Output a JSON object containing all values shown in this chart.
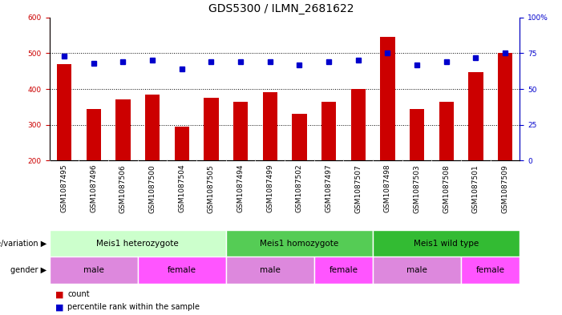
{
  "title": "GDS5300 / ILMN_2681622",
  "samples": [
    "GSM1087495",
    "GSM1087496",
    "GSM1087506",
    "GSM1087500",
    "GSM1087504",
    "GSM1087505",
    "GSM1087494",
    "GSM1087499",
    "GSM1087502",
    "GSM1087497",
    "GSM1087507",
    "GSM1087498",
    "GSM1087503",
    "GSM1087508",
    "GSM1087501",
    "GSM1087509"
  ],
  "counts": [
    470,
    345,
    370,
    385,
    295,
    375,
    365,
    390,
    330,
    365,
    400,
    545,
    345,
    365,
    448,
    500
  ],
  "percentiles": [
    73,
    68,
    69,
    70,
    64,
    69,
    69,
    69,
    67,
    69,
    70,
    75,
    67,
    69,
    72,
    75
  ],
  "ylim_left": [
    200,
    600
  ],
  "ylim_right": [
    0,
    100
  ],
  "yticks_left": [
    200,
    300,
    400,
    500,
    600
  ],
  "yticks_right": [
    0,
    25,
    50,
    75,
    100
  ],
  "bar_color": "#cc0000",
  "dot_color": "#0000cc",
  "genotype_groups": [
    {
      "label": "Meis1 heterozygote",
      "start": 0,
      "end": 6,
      "color": "#ccffcc"
    },
    {
      "label": "Meis1 homozygote",
      "start": 6,
      "end": 11,
      "color": "#55cc55"
    },
    {
      "label": "Meis1 wild type",
      "start": 11,
      "end": 16,
      "color": "#33bb33"
    }
  ],
  "gender_groups": [
    {
      "label": "male",
      "start": 0,
      "end": 3,
      "color": "#dd88dd"
    },
    {
      "label": "female",
      "start": 3,
      "end": 6,
      "color": "#ff55ff"
    },
    {
      "label": "male",
      "start": 6,
      "end": 9,
      "color": "#dd88dd"
    },
    {
      "label": "female",
      "start": 9,
      "end": 11,
      "color": "#ff55ff"
    },
    {
      "label": "male",
      "start": 11,
      "end": 14,
      "color": "#dd88dd"
    },
    {
      "label": "female",
      "start": 14,
      "end": 16,
      "color": "#ff55ff"
    }
  ],
  "legend_count_label": "count",
  "legend_percentile_label": "percentile rank within the sample",
  "genotype_label": "genotype/variation",
  "gender_label": "gender",
  "tick_label_fontsize": 6.5,
  "title_fontsize": 10,
  "annotation_fontsize": 7.5,
  "label_fontsize": 7,
  "gray_bg": "#c8c8c8"
}
